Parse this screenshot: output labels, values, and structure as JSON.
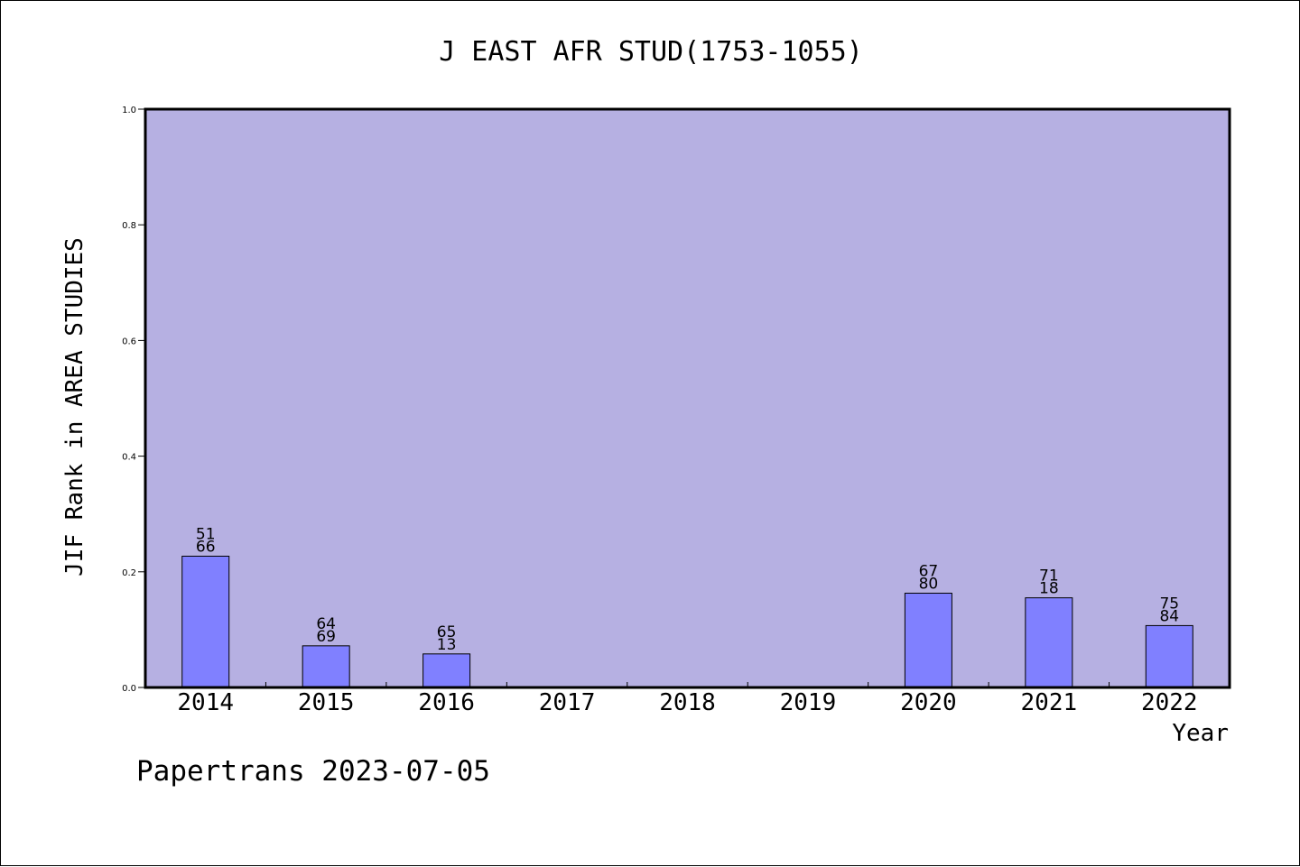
{
  "chart_data": {
    "type": "bar",
    "title": "J EAST AFR STUD(1753-1055)",
    "xlabel": "Year",
    "ylabel": "JIF Rank in AREA STUDIES",
    "categories": [
      "2014",
      "2015",
      "2016",
      "2017",
      "2018",
      "2019",
      "2020",
      "2021",
      "2022"
    ],
    "values": [
      0.227,
      0.072,
      0.058,
      null,
      null,
      null,
      0.163,
      0.155,
      0.107
    ],
    "labels_top": [
      "51",
      "64",
      "65",
      "",
      "",
      "",
      "67",
      "71",
      "75"
    ],
    "labels_bottom": [
      "66",
      "69",
      "13",
      "",
      "",
      "",
      "80",
      "18",
      "84"
    ],
    "ylim": [
      0,
      1.0
    ],
    "yticks": [
      "0.0",
      "0.2",
      "0.4",
      "0.6",
      "0.8",
      "1.0"
    ],
    "grid": false,
    "colors": {
      "plot_background": "#b6b0e2",
      "bar_fill": "#8080ff",
      "bar_stroke": "#000000"
    }
  },
  "footer": {
    "credit": "Papertrans 2023-07-05"
  }
}
